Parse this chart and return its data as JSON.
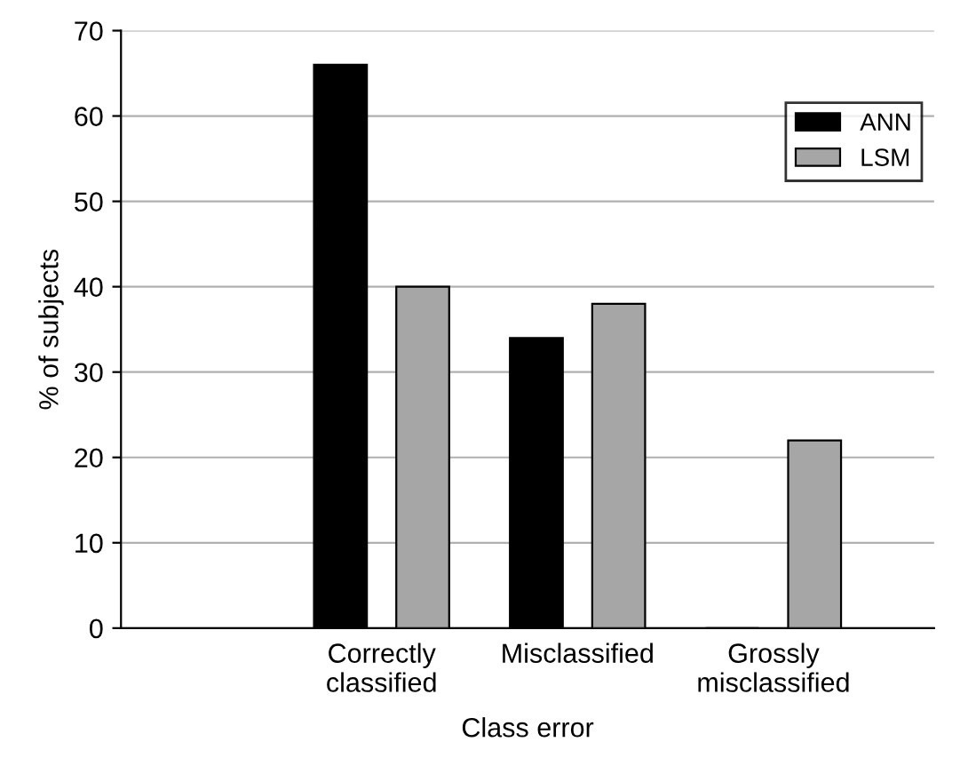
{
  "chart_data": {
    "type": "bar",
    "xlabel": "Class error",
    "ylabel": "% of subjects",
    "categories": [
      "Correctly\nclassified",
      "Misclassified",
      "Grossly\nmisclassified"
    ],
    "series": [
      {
        "name": "ANN",
        "color": "#000000",
        "values": [
          66,
          34,
          0
        ]
      },
      {
        "name": "LSM",
        "color": "#a6a6a6",
        "values": [
          40,
          38,
          22
        ]
      }
    ],
    "ylim": [
      0,
      70
    ],
    "yticks": [
      0,
      10,
      20,
      30,
      40,
      50,
      60,
      70
    ],
    "grid": "y",
    "legend": "top right"
  }
}
